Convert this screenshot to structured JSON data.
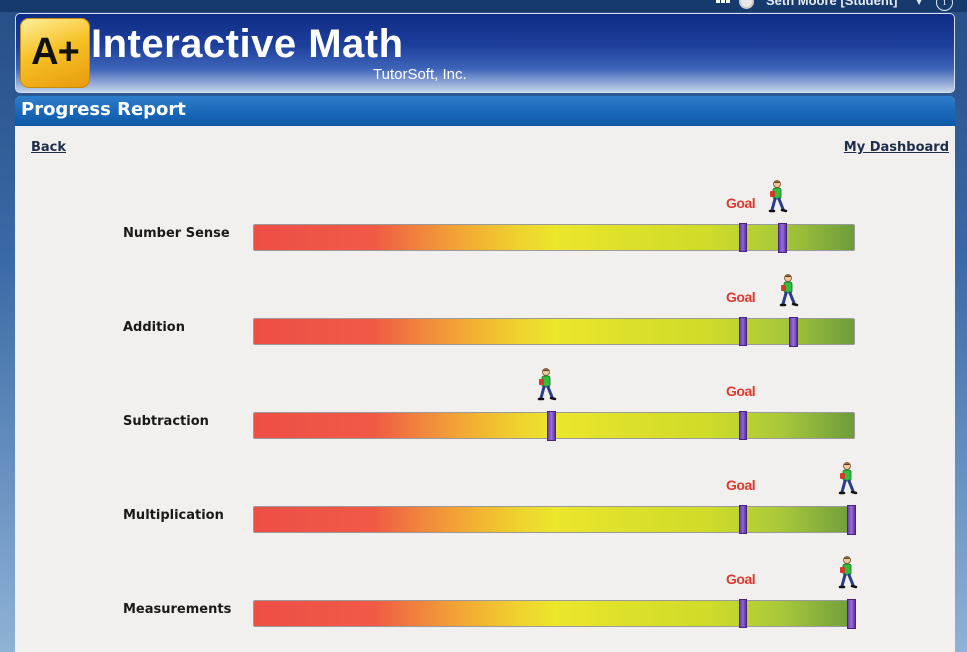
{
  "topbar": {
    "user_name": "Seth Moore [Student]",
    "grid_icon": "grid-icon",
    "user_icon": "user-icon",
    "info_icon": "info-icon"
  },
  "header": {
    "logo_text": "A+",
    "app_title": "Interactive Math",
    "company": "TutorSoft, Inc."
  },
  "report": {
    "title": "Progress Report",
    "back_label": "Back",
    "dashboard_label": "My Dashboard",
    "goal_label": "Goal",
    "skills": [
      {
        "label": "Number Sense",
        "goal": 0.813,
        "progress": 0.877
      },
      {
        "label": "Addition",
        "goal": 0.813,
        "progress": 0.895
      },
      {
        "label": "Subtraction",
        "goal": 0.813,
        "progress": 0.493
      },
      {
        "label": "Multiplication",
        "goal": 0.813,
        "progress": 0.995
      },
      {
        "label": "Measurements",
        "goal": 0.813,
        "progress": 0.995
      }
    ]
  },
  "colors": {
    "goal_text": "#e03a2e",
    "marker": "#7d52c8",
    "panel_header": "#1766b6"
  }
}
